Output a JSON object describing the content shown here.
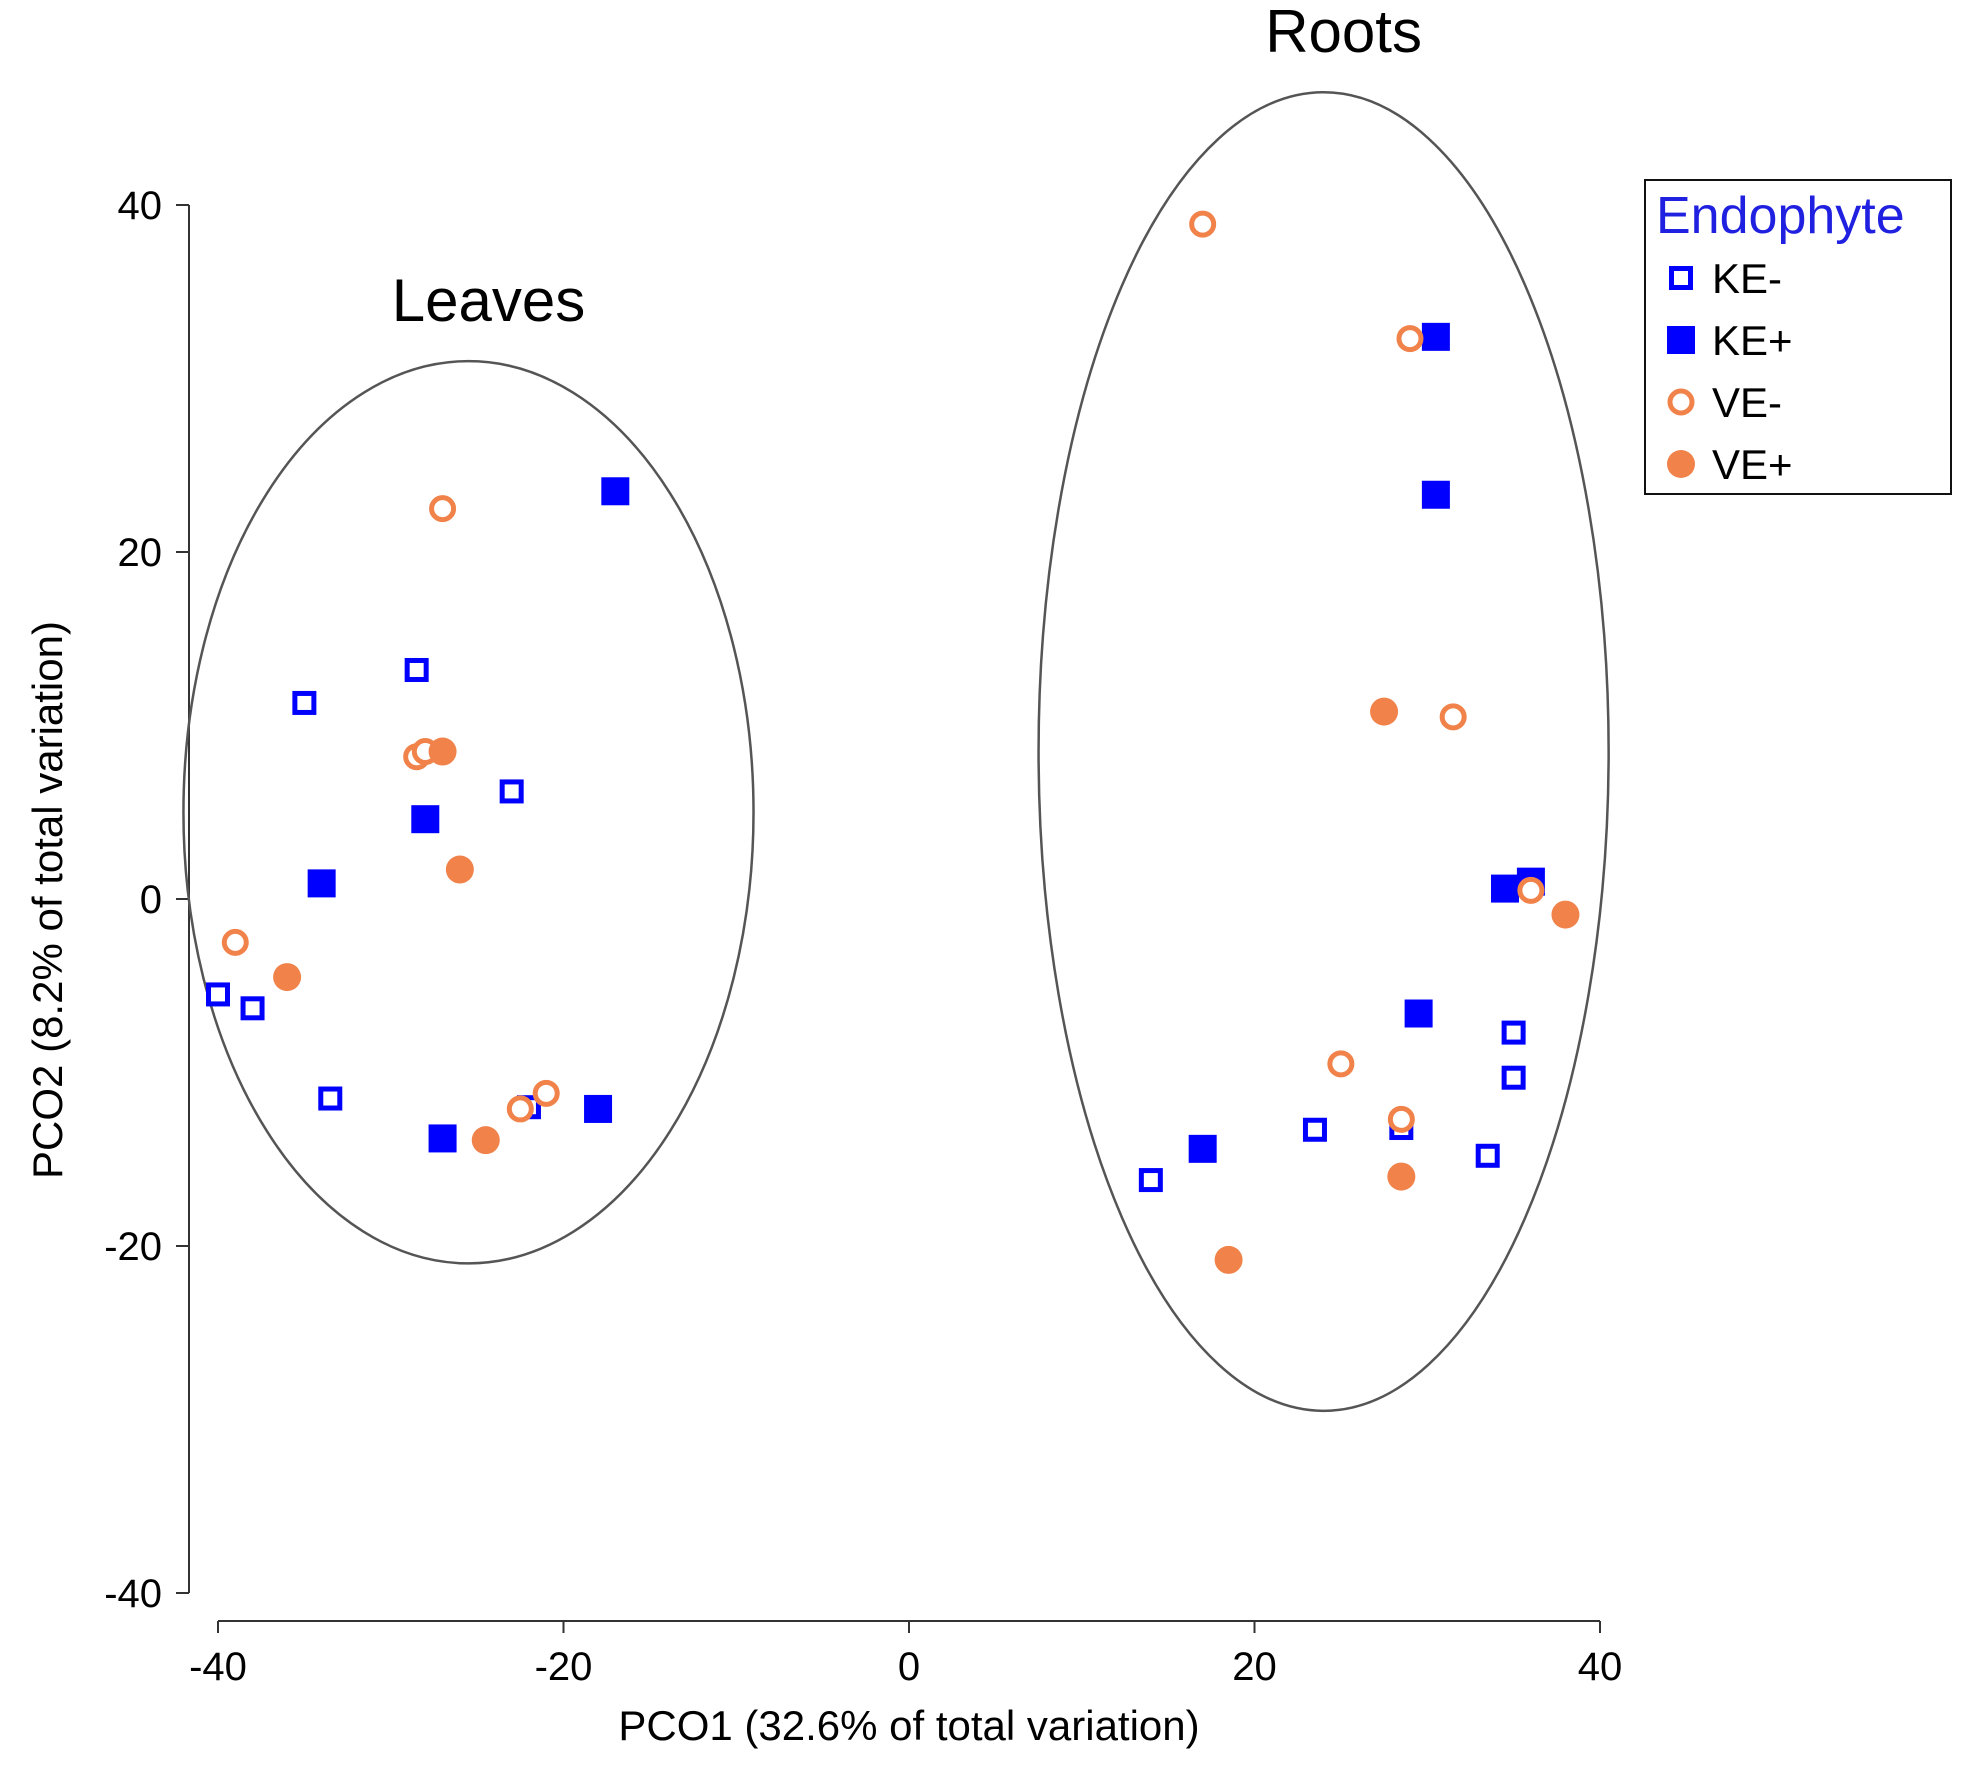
{
  "chart_data": {
    "type": "scatter",
    "title": "",
    "xlabel": "PCO1 (32.6% of total variation)",
    "ylabel": "PCO2 (8.2% of total variation)",
    "xlim": [
      -40,
      40
    ],
    "ylim": [
      -40,
      40
    ],
    "xticks": [
      -40,
      -20,
      0,
      20,
      40
    ],
    "yticks": [
      40,
      20,
      0,
      -20,
      -40
    ],
    "grid": false,
    "legend": {
      "title": "Endophyte",
      "position": "top-right",
      "title_color": "#2020e0"
    },
    "groups": [
      {
        "label": "Leaves",
        "center": [
          -25.5,
          5
        ],
        "radius_x": 16.5,
        "radius_y": 26
      },
      {
        "label": "Roots",
        "center": [
          24,
          8.5
        ],
        "radius_x": 16.5,
        "radius_y": 38
      }
    ],
    "series": [
      {
        "name": "KE-",
        "marker": "square",
        "filled": false,
        "color": "#0000ff",
        "points": [
          [
            -35,
            11.3
          ],
          [
            -28.5,
            13.2
          ],
          [
            -23,
            6.2
          ],
          [
            -40,
            -5.5
          ],
          [
            -38,
            -6.3
          ],
          [
            -33.5,
            -11.5
          ],
          [
            -22,
            -12
          ],
          [
            14,
            -16.2
          ],
          [
            23.5,
            -13.3
          ],
          [
            28.5,
            -13.2
          ],
          [
            33.5,
            -14.8
          ],
          [
            35,
            -7.7
          ],
          [
            35,
            -10.3
          ]
        ]
      },
      {
        "name": "KE+",
        "marker": "square",
        "filled": true,
        "color": "#0000ff",
        "points": [
          [
            -17,
            23.5
          ],
          [
            -28,
            4.6
          ],
          [
            -34,
            0.9
          ],
          [
            -27,
            -13.8
          ],
          [
            -18,
            -12.1
          ],
          [
            30.5,
            32.4
          ],
          [
            30.5,
            23.3
          ],
          [
            34.5,
            0.6
          ],
          [
            36,
            1
          ],
          [
            29.5,
            -6.6
          ],
          [
            17,
            -14.4
          ]
        ]
      },
      {
        "name": "VE-",
        "marker": "circle",
        "filled": false,
        "color": "#f0824a",
        "points": [
          [
            -27,
            22.5
          ],
          [
            -28.5,
            8.2
          ],
          [
            -28,
            8.5
          ],
          [
            -39,
            -2.5
          ],
          [
            -22.5,
            -12.1
          ],
          [
            -21,
            -11.2
          ],
          [
            17,
            38.9
          ],
          [
            29,
            32.3
          ],
          [
            31.5,
            10.5
          ],
          [
            25,
            -9.5
          ],
          [
            28.5,
            -12.7
          ],
          [
            36,
            0.5
          ]
        ]
      },
      {
        "name": "VE+",
        "marker": "circle",
        "filled": true,
        "color": "#f0824a",
        "points": [
          [
            -27,
            8.5
          ],
          [
            -26,
            1.7
          ],
          [
            -36,
            -4.5
          ],
          [
            -24.5,
            -13.9
          ],
          [
            27.5,
            10.8
          ],
          [
            38,
            -0.9
          ],
          [
            28.5,
            -16
          ],
          [
            18.5,
            -20.8
          ]
        ]
      }
    ]
  }
}
